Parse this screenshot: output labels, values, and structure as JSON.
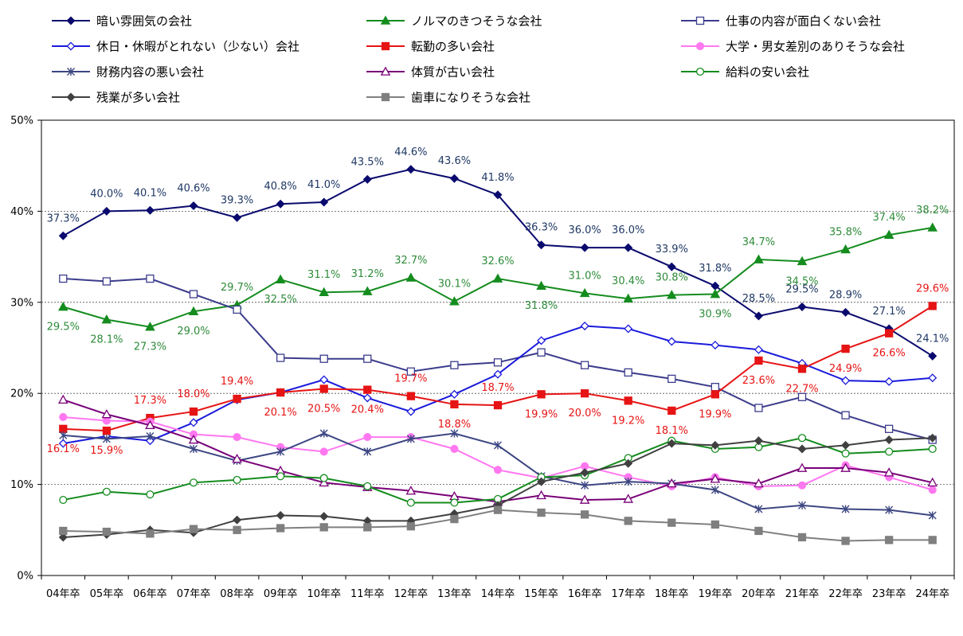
{
  "chart_data": {
    "type": "line",
    "title": "",
    "xlabel": "",
    "ylabel": "",
    "ylim": [
      0,
      50
    ],
    "yticks": [
      "0%",
      "10%",
      "20%",
      "30%",
      "40%",
      "50%"
    ],
    "categories": [
      "04年卒",
      "05年卒",
      "06年卒",
      "07年卒",
      "08年卒",
      "09年卒",
      "10年卒",
      "11年卒",
      "12年卒",
      "13年卒",
      "14年卒",
      "15年卒",
      "16年卒",
      "17年卒",
      "18年卒",
      "19年卒",
      "20年卒",
      "21年卒",
      "22年卒",
      "23年卒",
      "24年卒"
    ],
    "legend_position": "top",
    "series": [
      {
        "name": "暗い雰囲気の会社",
        "color": "#0a0a6e",
        "marker": "diamond",
        "filled": true,
        "values": [
          37.3,
          40.0,
          40.1,
          40.6,
          39.3,
          40.8,
          41.0,
          43.5,
          44.6,
          43.6,
          41.8,
          36.3,
          36.0,
          36.0,
          33.9,
          31.8,
          28.5,
          29.5,
          28.9,
          27.1,
          24.1
        ],
        "labels": [
          "37.3%",
          "40.0%",
          "40.1%",
          "40.6%",
          "39.3%",
          "40.8%",
          "41.0%",
          "43.5%",
          "44.6%",
          "43.6%",
          "41.8%",
          "36.3%",
          "36.0%",
          "36.0%",
          "33.9%",
          "31.8%",
          "28.5%",
          "29.5%",
          "28.9%",
          "27.1%",
          "24.1%"
        ],
        "label_color": "#1f3864"
      },
      {
        "name": "ノルマのきつそうな会社",
        "color": "#148c1e",
        "marker": "triangle",
        "filled": true,
        "values": [
          29.5,
          28.1,
          27.3,
          29.0,
          29.7,
          32.5,
          31.1,
          31.2,
          32.7,
          30.1,
          32.6,
          31.8,
          31.0,
          30.4,
          30.8,
          30.9,
          34.7,
          34.5,
          35.8,
          37.4,
          38.2
        ],
        "labels": [
          "29.5%",
          "28.1%",
          "27.3%",
          "29.0%",
          "29.7%",
          "32.5%",
          "31.1%",
          "31.2%",
          "32.7%",
          "30.1%",
          "32.6%",
          "31.8%",
          "31.0%",
          "30.4%",
          "30.8%",
          "30.9%",
          "34.7%",
          "34.5%",
          "35.8%",
          "37.4%",
          "38.2%"
        ],
        "label_color": "#2e8b3a"
      },
      {
        "name": "仕事の内容が面白くない会社",
        "color": "#3c3c8c",
        "marker": "square",
        "filled": false,
        "values": [
          32.6,
          32.3,
          32.6,
          30.9,
          29.2,
          23.9,
          23.8,
          23.8,
          22.4,
          23.1,
          23.4,
          24.5,
          23.1,
          22.3,
          21.6,
          20.7,
          18.4,
          19.6,
          17.6,
          16.1,
          14.9
        ]
      },
      {
        "name": "休日・休暇がとれない（少ない）会社",
        "color": "#1a1adc",
        "marker": "diamond",
        "filled": false,
        "values": [
          14.5,
          15.3,
          14.8,
          16.8,
          19.3,
          20.1,
          21.5,
          19.5,
          18.0,
          19.9,
          22.1,
          25.8,
          27.4,
          27.1,
          25.7,
          25.3,
          24.8,
          23.3,
          21.4,
          21.3,
          21.7
        ]
      },
      {
        "name": "転勤の多い会社",
        "color": "#e61414",
        "marker": "square",
        "filled": true,
        "values": [
          16.1,
          15.9,
          17.3,
          18.0,
          19.4,
          20.1,
          20.5,
          20.4,
          19.7,
          18.8,
          18.7,
          19.9,
          20.0,
          19.2,
          18.1,
          19.9,
          23.6,
          22.7,
          24.9,
          26.6,
          29.6
        ],
        "labels": [
          "16.1%",
          "15.9%",
          "17.3%",
          "18.0%",
          "19.4%",
          "20.1%",
          "20.5%",
          "20.4%",
          "19.7%",
          "18.8%",
          "18.7%",
          "19.9%",
          "20.0%",
          "19.2%",
          "18.1%",
          "19.9%",
          "23.6%",
          "22.7%",
          "24.9%",
          "26.6%",
          "29.6%"
        ],
        "label_color": "#e61414"
      },
      {
        "name": "大学・男女差別のありそうな会社",
        "color": "#ff78f0",
        "marker": "circle",
        "filled": true,
        "values": [
          17.4,
          17.0,
          16.9,
          15.5,
          15.2,
          14.1,
          13.6,
          15.2,
          15.2,
          13.9,
          11.6,
          10.7,
          12.0,
          10.8,
          9.8,
          10.8,
          9.8,
          9.9,
          12.1,
          10.8,
          9.4
        ]
      },
      {
        "name": "財務内容の悪い会社",
        "color": "#3c4682",
        "marker": "star",
        "filled": false,
        "values": [
          15.4,
          15.0,
          15.3,
          13.9,
          12.6,
          13.6,
          15.6,
          13.6,
          15.0,
          15.6,
          14.3,
          10.9,
          9.9,
          10.3,
          10.1,
          9.4,
          7.3,
          7.7,
          7.3,
          7.2,
          6.6
        ]
      },
      {
        "name": "体質が古い会社",
        "color": "#780078",
        "marker": "triangle",
        "filled": false,
        "values": [
          19.3,
          17.7,
          16.5,
          14.9,
          12.8,
          11.5,
          10.2,
          9.7,
          9.3,
          8.7,
          8.1,
          8.8,
          8.3,
          8.4,
          10.1,
          10.6,
          10.1,
          11.8,
          11.8,
          11.3,
          10.2
        ]
      },
      {
        "name": "給料の安い会社",
        "color": "#148c1e",
        "marker": "circle",
        "filled": false,
        "values": [
          8.3,
          9.2,
          8.9,
          10.2,
          10.5,
          10.9,
          10.7,
          9.8,
          8.0,
          8.0,
          8.4,
          10.8,
          11.0,
          12.9,
          14.8,
          13.9,
          14.1,
          15.1,
          13.4,
          13.6,
          13.9
        ]
      },
      {
        "name": "残業が多い会社",
        "color": "#404040",
        "marker": "diamond",
        "filled": true,
        "values": [
          4.2,
          4.5,
          5.0,
          4.7,
          6.1,
          6.6,
          6.5,
          6.0,
          6.0,
          6.8,
          7.7,
          10.3,
          11.3,
          12.3,
          14.5,
          14.3,
          14.8,
          13.9,
          14.3,
          14.9,
          15.1
        ]
      },
      {
        "name": "歯車になりそうな会社",
        "color": "#7f7f7f",
        "marker": "square",
        "filled": true,
        "values": [
          4.9,
          4.8,
          4.6,
          5.1,
          5.0,
          5.2,
          5.3,
          5.3,
          5.4,
          6.2,
          7.2,
          6.9,
          6.7,
          6.0,
          5.8,
          5.6,
          4.9,
          4.2,
          3.8,
          3.9,
          3.9
        ]
      }
    ]
  }
}
